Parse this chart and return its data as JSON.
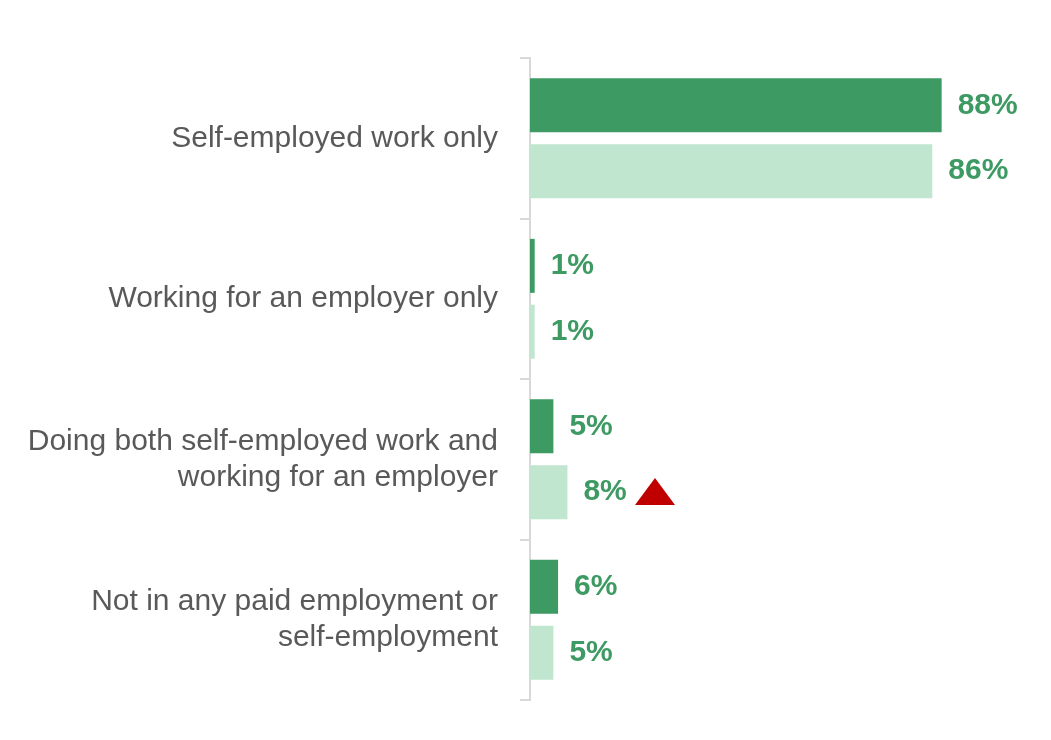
{
  "chart_data": {
    "type": "bar",
    "orientation": "horizontal",
    "categories": [
      "Self-employed work only",
      "Working for an employer only",
      "Doing both self-employed work and working for an employer",
      "Not in any paid employment or self-employment"
    ],
    "series": [
      {
        "color": "#3d9a62",
        "values": [
          88,
          1,
          5,
          6
        ],
        "value_labels": [
          "88%",
          "1%",
          "5%",
          "6%"
        ]
      },
      {
        "color": "#c0e6d0",
        "values": [
          86,
          1,
          8,
          5
        ],
        "value_labels": [
          "86%",
          "1%",
          "8%",
          "5%"
        ]
      }
    ],
    "grid": false,
    "legend": false
  }
}
